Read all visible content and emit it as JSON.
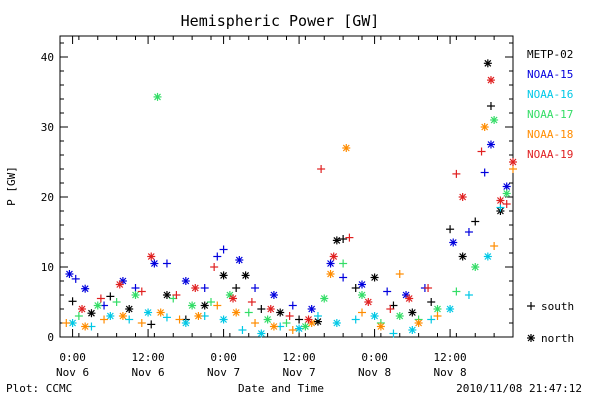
{
  "chart_data": {
    "type": "scatter",
    "title": "Hemispheric Power [GW]",
    "xlabel": "Date and Time",
    "ylabel": "P [GW]",
    "xlim": [
      "2010-11-05 22:00",
      "2010-11-08 22:00"
    ],
    "ylim": [
      0,
      43
    ],
    "y_ticks": [
      0,
      10,
      20,
      30,
      40
    ],
    "x_ticks": [
      {
        "line1": "0:00",
        "line2": "Nov 6",
        "t": "2010-11-06 00:00"
      },
      {
        "line1": "12:00",
        "line2": "Nov 6",
        "t": "2010-11-06 12:00"
      },
      {
        "line1": "0:00",
        "line2": "Nov 7",
        "t": "2010-11-07 00:00"
      },
      {
        "line1": "12:00",
        "line2": "Nov 7",
        "t": "2010-11-07 12:00"
      },
      {
        "line1": "0:00",
        "line2": "Nov 8",
        "t": "2010-11-08 00:00"
      },
      {
        "line1": "12:00",
        "line2": "Nov 8",
        "t": "2010-11-08 12:00"
      }
    ],
    "grid": false,
    "legend_position": "right",
    "marker_legend": [
      {
        "symbol": "+",
        "label": "south"
      },
      {
        "symbol": "*",
        "label": "north"
      }
    ],
    "series": [
      {
        "name": "METP-02",
        "color": "#000000",
        "points": [
          {
            "x": "2010-11-06 00:00",
            "y": 5.1,
            "m": "+"
          },
          {
            "x": "2010-11-06 03:00",
            "y": 3.4,
            "m": "*"
          },
          {
            "x": "2010-11-06 06:00",
            "y": 5.8,
            "m": "+"
          },
          {
            "x": "2010-11-06 09:00",
            "y": 4.0,
            "m": "*"
          },
          {
            "x": "2010-11-06 12:30",
            "y": 1.8,
            "m": "+"
          },
          {
            "x": "2010-11-06 15:00",
            "y": 6.0,
            "m": "*"
          },
          {
            "x": "2010-11-06 18:00",
            "y": 2.5,
            "m": "+"
          },
          {
            "x": "2010-11-06 21:00",
            "y": 4.5,
            "m": "*"
          },
          {
            "x": "2010-11-07 00:00",
            "y": 8.8,
            "m": "*"
          },
          {
            "x": "2010-11-07 02:00",
            "y": 7.0,
            "m": "+"
          },
          {
            "x": "2010-11-07 03:30",
            "y": 8.8,
            "m": "*"
          },
          {
            "x": "2010-11-07 06:00",
            "y": 4.0,
            "m": "+"
          },
          {
            "x": "2010-11-07 09:00",
            "y": 3.5,
            "m": "*"
          },
          {
            "x": "2010-11-07 12:00",
            "y": 2.5,
            "m": "+"
          },
          {
            "x": "2010-11-07 15:00",
            "y": 2.2,
            "m": "*"
          },
          {
            "x": "2010-11-07 18:00",
            "y": 13.8,
            "m": "*"
          },
          {
            "x": "2010-11-07 19:00",
            "y": 14.0,
            "m": "+"
          },
          {
            "x": "2010-11-07 21:00",
            "y": 7.0,
            "m": "+"
          },
          {
            "x": "2010-11-08 00:00",
            "y": 8.5,
            "m": "*"
          },
          {
            "x": "2010-11-08 03:00",
            "y": 4.5,
            "m": "+"
          },
          {
            "x": "2010-11-08 06:00",
            "y": 3.5,
            "m": "*"
          },
          {
            "x": "2010-11-08 09:00",
            "y": 5.0,
            "m": "+"
          },
          {
            "x": "2010-11-08 12:00",
            "y": 15.4,
            "m": "+"
          },
          {
            "x": "2010-11-08 14:00",
            "y": 11.5,
            "m": "*"
          },
          {
            "x": "2010-11-08 16:00",
            "y": 16.5,
            "m": "+"
          },
          {
            "x": "2010-11-08 18:00",
            "y": 39.1,
            "m": "*"
          },
          {
            "x": "2010-11-08 18:30",
            "y": 33.0,
            "m": "+"
          },
          {
            "x": "2010-11-08 20:00",
            "y": 18.0,
            "m": "*"
          }
        ]
      },
      {
        "name": "NOAA-15",
        "color": "#0000dd",
        "points": [
          {
            "x": "2010-11-05 23:30",
            "y": 9.0,
            "m": "*"
          },
          {
            "x": "2010-11-06 00:30",
            "y": 8.3,
            "m": "+"
          },
          {
            "x": "2010-11-06 02:00",
            "y": 6.9,
            "m": "*"
          },
          {
            "x": "2010-11-06 05:00",
            "y": 4.5,
            "m": "+"
          },
          {
            "x": "2010-11-06 08:00",
            "y": 8.0,
            "m": "*"
          },
          {
            "x": "2010-11-06 10:00",
            "y": 7.0,
            "m": "+"
          },
          {
            "x": "2010-11-06 13:00",
            "y": 10.5,
            "m": "*"
          },
          {
            "x": "2010-11-06 15:00",
            "y": 10.5,
            "m": "+"
          },
          {
            "x": "2010-11-06 18:00",
            "y": 8.0,
            "m": "*"
          },
          {
            "x": "2010-11-06 21:00",
            "y": 7.0,
            "m": "+"
          },
          {
            "x": "2010-11-06 23:00",
            "y": 11.5,
            "m": "+"
          },
          {
            "x": "2010-11-07 00:00",
            "y": 12.5,
            "m": "+"
          },
          {
            "x": "2010-11-07 02:30",
            "y": 11.0,
            "m": "*"
          },
          {
            "x": "2010-11-07 05:00",
            "y": 7.0,
            "m": "+"
          },
          {
            "x": "2010-11-07 08:00",
            "y": 6.0,
            "m": "*"
          },
          {
            "x": "2010-11-07 11:00",
            "y": 4.5,
            "m": "+"
          },
          {
            "x": "2010-11-07 14:00",
            "y": 4.0,
            "m": "*"
          },
          {
            "x": "2010-11-07 17:00",
            "y": 10.5,
            "m": "*"
          },
          {
            "x": "2010-11-07 19:00",
            "y": 8.5,
            "m": "+"
          },
          {
            "x": "2010-11-07 22:00",
            "y": 7.5,
            "m": "*"
          },
          {
            "x": "2010-11-08 02:00",
            "y": 6.5,
            "m": "+"
          },
          {
            "x": "2010-11-08 05:00",
            "y": 6.0,
            "m": "*"
          },
          {
            "x": "2010-11-08 08:00",
            "y": 7.0,
            "m": "+"
          },
          {
            "x": "2010-11-08 12:30",
            "y": 13.5,
            "m": "*"
          },
          {
            "x": "2010-11-08 15:00",
            "y": 15.0,
            "m": "+"
          },
          {
            "x": "2010-11-08 17:30",
            "y": 23.5,
            "m": "+"
          },
          {
            "x": "2010-11-08 18:30",
            "y": 27.5,
            "m": "*"
          },
          {
            "x": "2010-11-08 21:00",
            "y": 21.5,
            "m": "*"
          }
        ]
      },
      {
        "name": "NOAA-16",
        "color": "#00c8e6",
        "points": [
          {
            "x": "2010-11-06 00:00",
            "y": 2.0,
            "m": "*"
          },
          {
            "x": "2010-11-06 03:00",
            "y": 1.5,
            "m": "+"
          },
          {
            "x": "2010-11-06 06:00",
            "y": 3.0,
            "m": "*"
          },
          {
            "x": "2010-11-06 09:00",
            "y": 2.5,
            "m": "+"
          },
          {
            "x": "2010-11-06 12:00",
            "y": 3.5,
            "m": "*"
          },
          {
            "x": "2010-11-06 15:00",
            "y": 2.8,
            "m": "+"
          },
          {
            "x": "2010-11-06 18:00",
            "y": 2.0,
            "m": "*"
          },
          {
            "x": "2010-11-06 21:00",
            "y": 3.0,
            "m": "+"
          },
          {
            "x": "2010-11-07 00:00",
            "y": 2.5,
            "m": "*"
          },
          {
            "x": "2010-11-07 03:00",
            "y": 1.0,
            "m": "+"
          },
          {
            "x": "2010-11-07 06:00",
            "y": 0.5,
            "m": "*"
          },
          {
            "x": "2010-11-07 09:00",
            "y": 1.5,
            "m": "+"
          },
          {
            "x": "2010-11-07 12:00",
            "y": 1.2,
            "m": "*"
          },
          {
            "x": "2010-11-07 15:00",
            "y": 3.0,
            "m": "+"
          },
          {
            "x": "2010-11-07 18:00",
            "y": 2.0,
            "m": "*"
          },
          {
            "x": "2010-11-07 21:00",
            "y": 2.5,
            "m": "+"
          },
          {
            "x": "2010-11-08 00:00",
            "y": 3.0,
            "m": "*"
          },
          {
            "x": "2010-11-08 03:00",
            "y": 0.5,
            "m": "+"
          },
          {
            "x": "2010-11-08 06:00",
            "y": 1.0,
            "m": "*"
          },
          {
            "x": "2010-11-08 09:00",
            "y": 2.5,
            "m": "+"
          },
          {
            "x": "2010-11-08 12:00",
            "y": 4.0,
            "m": "*"
          },
          {
            "x": "2010-11-08 15:00",
            "y": 6.0,
            "m": "+"
          },
          {
            "x": "2010-11-08 18:00",
            "y": 11.5,
            "m": "*"
          },
          {
            "x": "2010-11-08 20:00",
            "y": 18.5,
            "m": "+"
          }
        ]
      },
      {
        "name": "NOAA-17",
        "color": "#33dd66",
        "points": [
          {
            "x": "2010-11-06 01:00",
            "y": 3.0,
            "m": "+"
          },
          {
            "x": "2010-11-06 04:00",
            "y": 4.5,
            "m": "*"
          },
          {
            "x": "2010-11-06 07:00",
            "y": 5.0,
            "m": "+"
          },
          {
            "x": "2010-11-06 10:00",
            "y": 6.0,
            "m": "*"
          },
          {
            "x": "2010-11-06 13:30",
            "y": 34.3,
            "m": "*"
          },
          {
            "x": "2010-11-06 16:00",
            "y": 5.5,
            "m": "+"
          },
          {
            "x": "2010-11-06 19:00",
            "y": 4.5,
            "m": "*"
          },
          {
            "x": "2010-11-06 22:00",
            "y": 5.0,
            "m": "+"
          },
          {
            "x": "2010-11-07 01:00",
            "y": 6.0,
            "m": "*"
          },
          {
            "x": "2010-11-07 04:00",
            "y": 3.5,
            "m": "+"
          },
          {
            "x": "2010-11-07 07:00",
            "y": 2.5,
            "m": "*"
          },
          {
            "x": "2010-11-07 10:00",
            "y": 2.0,
            "m": "+"
          },
          {
            "x": "2010-11-07 13:00",
            "y": 1.5,
            "m": "*"
          },
          {
            "x": "2010-11-07 16:00",
            "y": 5.5,
            "m": "*"
          },
          {
            "x": "2010-11-07 19:00",
            "y": 10.5,
            "m": "+"
          },
          {
            "x": "2010-11-07 22:00",
            "y": 6.0,
            "m": "*"
          },
          {
            "x": "2010-11-08 01:00",
            "y": 2.0,
            "m": "+"
          },
          {
            "x": "2010-11-08 04:00",
            "y": 3.0,
            "m": "*"
          },
          {
            "x": "2010-11-08 07:00",
            "y": 2.5,
            "m": "+"
          },
          {
            "x": "2010-11-08 10:00",
            "y": 4.0,
            "m": "*"
          },
          {
            "x": "2010-11-08 13:00",
            "y": 6.5,
            "m": "+"
          },
          {
            "x": "2010-11-08 16:00",
            "y": 10.0,
            "m": "*"
          },
          {
            "x": "2010-11-08 19:00",
            "y": 31.0,
            "m": "*"
          },
          {
            "x": "2010-11-08 21:00",
            "y": 20.5,
            "m": "*"
          }
        ]
      },
      {
        "name": "NOAA-18",
        "color": "#ff8c00",
        "points": [
          {
            "x": "2010-11-05 23:00",
            "y": 2.0,
            "m": "+"
          },
          {
            "x": "2010-11-06 02:00",
            "y": 1.5,
            "m": "*"
          },
          {
            "x": "2010-11-06 05:00",
            "y": 2.5,
            "m": "+"
          },
          {
            "x": "2010-11-06 08:00",
            "y": 3.0,
            "m": "*"
          },
          {
            "x": "2010-11-06 11:00",
            "y": 2.0,
            "m": "+"
          },
          {
            "x": "2010-11-06 14:00",
            "y": 3.5,
            "m": "*"
          },
          {
            "x": "2010-11-06 17:00",
            "y": 2.5,
            "m": "+"
          },
          {
            "x": "2010-11-06 20:00",
            "y": 3.0,
            "m": "*"
          },
          {
            "x": "2010-11-06 23:00",
            "y": 4.5,
            "m": "+"
          },
          {
            "x": "2010-11-07 02:00",
            "y": 3.5,
            "m": "*"
          },
          {
            "x": "2010-11-07 05:00",
            "y": 2.0,
            "m": "+"
          },
          {
            "x": "2010-11-07 08:00",
            "y": 1.5,
            "m": "*"
          },
          {
            "x": "2010-11-07 11:00",
            "y": 1.0,
            "m": "+"
          },
          {
            "x": "2010-11-07 14:00",
            "y": 2.0,
            "m": "*"
          },
          {
            "x": "2010-11-07 17:00",
            "y": 9.0,
            "m": "*"
          },
          {
            "x": "2010-11-07 19:30",
            "y": 27.0,
            "m": "*"
          },
          {
            "x": "2010-11-07 22:00",
            "y": 3.5,
            "m": "+"
          },
          {
            "x": "2010-11-08 01:00",
            "y": 1.5,
            "m": "*"
          },
          {
            "x": "2010-11-08 04:00",
            "y": 9.0,
            "m": "+"
          },
          {
            "x": "2010-11-08 07:00",
            "y": 2.0,
            "m": "*"
          },
          {
            "x": "2010-11-08 10:00",
            "y": 3.0,
            "m": "+"
          },
          {
            "x": "2010-11-08 17:30",
            "y": 30.0,
            "m": "*"
          },
          {
            "x": "2010-11-08 19:00",
            "y": 13.0,
            "m": "+"
          },
          {
            "x": "2010-11-08 22:00",
            "y": 24.0,
            "m": "+"
          }
        ]
      },
      {
        "name": "NOAA-19",
        "color": "#e02020",
        "points": [
          {
            "x": "2010-11-06 01:30",
            "y": 4.0,
            "m": "*"
          },
          {
            "x": "2010-11-06 04:30",
            "y": 5.5,
            "m": "+"
          },
          {
            "x": "2010-11-06 07:30",
            "y": 7.5,
            "m": "*"
          },
          {
            "x": "2010-11-06 11:00",
            "y": 6.5,
            "m": "+"
          },
          {
            "x": "2010-11-06 12:30",
            "y": 11.5,
            "m": "*"
          },
          {
            "x": "2010-11-06 16:30",
            "y": 6.0,
            "m": "+"
          },
          {
            "x": "2010-11-06 19:30",
            "y": 7.0,
            "m": "*"
          },
          {
            "x": "2010-11-06 22:30",
            "y": 10.0,
            "m": "+"
          },
          {
            "x": "2010-11-07 01:30",
            "y": 5.5,
            "m": "*"
          },
          {
            "x": "2010-11-07 04:30",
            "y": 5.0,
            "m": "+"
          },
          {
            "x": "2010-11-07 07:30",
            "y": 4.0,
            "m": "*"
          },
          {
            "x": "2010-11-07 10:30",
            "y": 3.0,
            "m": "+"
          },
          {
            "x": "2010-11-07 13:30",
            "y": 2.5,
            "m": "*"
          },
          {
            "x": "2010-11-07 15:30",
            "y": 24.0,
            "m": "+"
          },
          {
            "x": "2010-11-07 17:30",
            "y": 11.5,
            "m": "*"
          },
          {
            "x": "2010-11-07 20:00",
            "y": 14.2,
            "m": "+"
          },
          {
            "x": "2010-11-07 23:00",
            "y": 5.0,
            "m": "*"
          },
          {
            "x": "2010-11-08 02:30",
            "y": 4.0,
            "m": "+"
          },
          {
            "x": "2010-11-08 05:30",
            "y": 5.5,
            "m": "*"
          },
          {
            "x": "2010-11-08 08:30",
            "y": 7.0,
            "m": "+"
          },
          {
            "x": "2010-11-08 13:00",
            "y": 23.3,
            "m": "+"
          },
          {
            "x": "2010-11-08 14:00",
            "y": 20.0,
            "m": "*"
          },
          {
            "x": "2010-11-08 17:00",
            "y": 26.5,
            "m": "+"
          },
          {
            "x": "2010-11-08 18:30",
            "y": 36.7,
            "m": "*"
          },
          {
            "x": "2010-11-08 20:00",
            "y": 19.5,
            "m": "*"
          },
          {
            "x": "2010-11-08 21:00",
            "y": 19.0,
            "m": "+"
          },
          {
            "x": "2010-11-08 22:00",
            "y": 25.0,
            "m": "*"
          }
        ]
      }
    ]
  },
  "footer": {
    "left": "Plot: CCMC",
    "right": "2010/11/08 21:47:12"
  }
}
